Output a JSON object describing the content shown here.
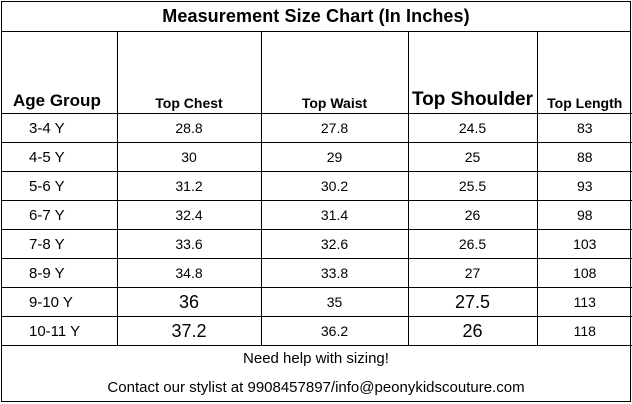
{
  "title": "Measurement Size Chart  (In Inches)",
  "headers": {
    "age": "Age Group",
    "chest": "Top  Chest",
    "waist": "Top Waist",
    "shoulder": "Top Shoulder",
    "length": "Top Length"
  },
  "rows": [
    {
      "age": "3-4 Y",
      "chest": "28.8",
      "waist": "27.8",
      "shoulder": "24.5",
      "length": "83"
    },
    {
      "age": "4-5 Y",
      "chest": "30",
      "waist": "29",
      "shoulder": "25",
      "length": "88"
    },
    {
      "age": "5-6 Y",
      "chest": "31.2",
      "waist": "30.2",
      "shoulder": "25.5",
      "length": "93"
    },
    {
      "age": "6-7 Y",
      "chest": "32.4",
      "waist": "31.4",
      "shoulder": "26",
      "length": "98"
    },
    {
      "age": "7-8 Y",
      "chest": "33.6",
      "waist": "32.6",
      "shoulder": "26.5",
      "length": "103"
    },
    {
      "age": "8-9 Y",
      "chest": "34.8",
      "waist": "33.8",
      "shoulder": "27",
      "length": "108"
    },
    {
      "age": "9-10 Y",
      "chest": "36",
      "waist": "35",
      "shoulder": "27.5",
      "length": "113"
    },
    {
      "age": "10-11 Y",
      "chest": "37.2",
      "waist": "36.2",
      "shoulder": "26",
      "length": "118"
    }
  ],
  "footer": {
    "help": "Need help with sizing!",
    "contact": "Contact our stylist at 9908457897/info@peonykidscouture.com"
  }
}
